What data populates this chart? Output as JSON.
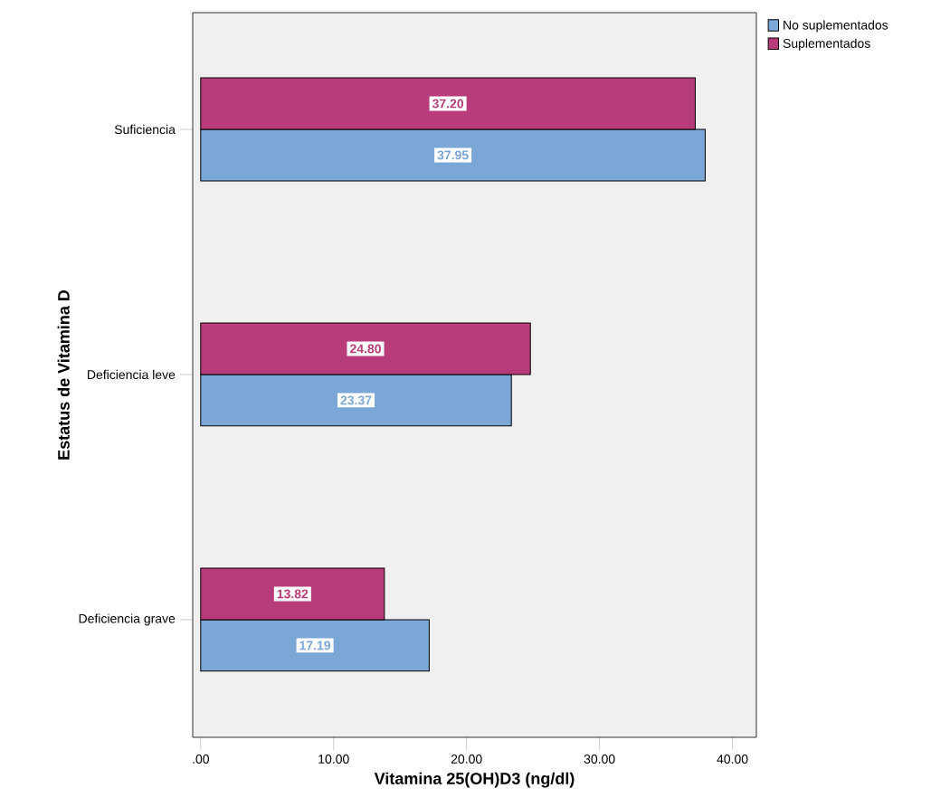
{
  "chart_data": {
    "type": "bar",
    "orientation": "horizontal",
    "xlabel": "Vitamina 25(OH)D3 (ng/dl)",
    "ylabel": "Estatus de Vitamina D",
    "categories": [
      "Suficiencia",
      "Deficiencia leve",
      "Deficiencia grave"
    ],
    "series": [
      {
        "name": "No suplementados",
        "color": "#7ba7d7",
        "values": [
          37.95,
          23.37,
          17.19
        ],
        "value_labels": [
          "37.95",
          "23.37",
          "17.19"
        ]
      },
      {
        "name": "Suplementados",
        "color": "#b83b7a",
        "values": [
          37.2,
          24.8,
          13.82
        ],
        "value_labels": [
          "37.20",
          "24.80",
          "13.82"
        ]
      }
    ],
    "xlim": [
      -0.6,
      41.8
    ],
    "xticks": [
      {
        "value": 0,
        "label": ".00"
      },
      {
        "value": 10,
        "label": "10.00"
      },
      {
        "value": 20,
        "label": "20.00"
      },
      {
        "value": 30,
        "label": "30.00"
      },
      {
        "value": 40,
        "label": "40.00"
      }
    ],
    "legend": "top right",
    "grid": false
  }
}
